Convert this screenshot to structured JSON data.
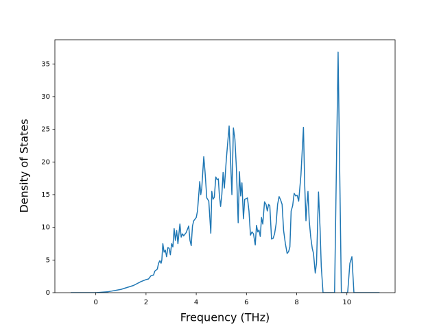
{
  "chart_data": {
    "type": "line",
    "xlabel": "Frequency (THz)",
    "ylabel": "Density of States",
    "x": [
      -1.0,
      0.0,
      0.5,
      1.0,
      1.5,
      1.8,
      2.0,
      2.1,
      2.2,
      2.3,
      2.35,
      2.45,
      2.5,
      2.55,
      2.6,
      2.63,
      2.67,
      2.72,
      2.77,
      2.82,
      2.87,
      2.92,
      2.97,
      3.02,
      3.07,
      3.12,
      3.17,
      3.22,
      3.27,
      3.35,
      3.4,
      3.45,
      3.5,
      3.6,
      3.7,
      3.75,
      3.8,
      3.85,
      3.9,
      4.0,
      4.05,
      4.14,
      4.18,
      4.22,
      4.3,
      4.35,
      4.42,
      4.5,
      4.58,
      4.62,
      4.67,
      4.72,
      4.78,
      4.83,
      4.88,
      4.92,
      4.97,
      5.02,
      5.07,
      5.12,
      5.2,
      5.31,
      5.36,
      5.42,
      5.48,
      5.54,
      5.6,
      5.67,
      5.72,
      5.77,
      5.82,
      5.88,
      5.93,
      6.0,
      6.04,
      6.1,
      6.16,
      6.22,
      6.28,
      6.35,
      6.4,
      6.45,
      6.5,
      6.55,
      6.6,
      6.65,
      6.72,
      6.78,
      6.83,
      6.88,
      6.93,
      7.0,
      7.06,
      7.12,
      7.18,
      7.24,
      7.3,
      7.36,
      7.42,
      7.48,
      7.55,
      7.62,
      7.68,
      7.73,
      7.78,
      7.84,
      7.9,
      7.96,
      8.02,
      8.08,
      8.17,
      8.27,
      8.32,
      8.37,
      8.4,
      8.45,
      8.5,
      8.56,
      8.62,
      8.67,
      8.74,
      8.79,
      8.87,
      8.93,
      8.98,
      9.05,
      9.51,
      9.65,
      9.78,
      10.03,
      10.12,
      10.2,
      10.28,
      11.3
    ],
    "series": [
      {
        "color": "#1f77b4",
        "values": [
          0,
          0,
          0.15,
          0.5,
          1.1,
          1.7,
          2.0,
          2.1,
          2.6,
          2.7,
          3.3,
          3.6,
          4.5,
          4.9,
          4.5,
          5.0,
          7.5,
          6.2,
          6.5,
          5.5,
          6.9,
          6.8,
          5.8,
          7.5,
          7.0,
          9.8,
          8.0,
          9.5,
          7.5,
          10.5,
          8.5,
          9.0,
          8.7,
          9.2,
          10.2,
          8.0,
          7.2,
          10.2,
          11.0,
          11.5,
          12.5,
          17.0,
          15.0,
          16.0,
          20.8,
          18.5,
          14.5,
          14.0,
          9.1,
          15.5,
          14.3,
          14.6,
          17.7,
          17.3,
          17.4,
          15.0,
          13.2,
          15.0,
          18.4,
          16.0,
          20.5,
          25.5,
          21.0,
          15.0,
          25.2,
          23.5,
          19.0,
          10.7,
          18.5,
          14.8,
          16.8,
          11.3,
          14.3,
          14.4,
          14.5,
          12.5,
          8.8,
          9.3,
          9.0,
          7.3,
          10.3,
          9.3,
          9.6,
          8.6,
          11.5,
          10.5,
          13.9,
          13.5,
          12.5,
          13.5,
          13.3,
          8.2,
          8.3,
          9.0,
          10.5,
          13.5,
          14.7,
          14.2,
          13.5,
          9.5,
          7.5,
          6.0,
          6.3,
          7.0,
          12.5,
          13.3,
          15.2,
          14.8,
          14.9,
          14.0,
          18.0,
          25.3,
          16.5,
          11.0,
          13.0,
          15.5,
          11.0,
          8.5,
          6.8,
          6.0,
          3.0,
          4.5,
          15.4,
          10.0,
          4.0,
          0,
          0,
          36.8,
          0,
          0,
          4.5,
          5.5,
          0,
          0
        ]
      }
    ],
    "xlim": [
      -1.63,
      11.92
    ],
    "ylim": [
      0,
      38.7
    ],
    "xticks": [
      0,
      2,
      4,
      6,
      8,
      10
    ],
    "yticks": [
      0,
      5,
      10,
      15,
      20,
      25,
      30,
      35
    ]
  }
}
